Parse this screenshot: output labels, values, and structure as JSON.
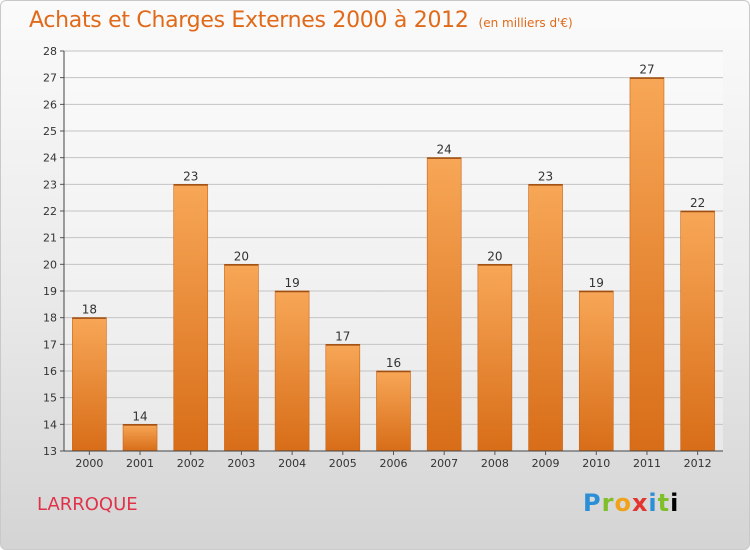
{
  "header": {
    "title": "Achats et Charges Externes 2000 à 2012",
    "subtitle": "(en milliers d'€)"
  },
  "footer": {
    "town": "LARROQUE",
    "brand": [
      "P",
      "r",
      "o",
      "x",
      "i",
      "t",
      "i"
    ]
  },
  "colors": {
    "title": "#e06a19",
    "town": "#e0334a",
    "bar_top": "#f7a757",
    "bar_bottom": "#d86d18"
  },
  "chart_data": {
    "type": "bar",
    "categories": [
      "2000",
      "2001",
      "2002",
      "2003",
      "2004",
      "2005",
      "2006",
      "2007",
      "2008",
      "2009",
      "2010",
      "2011",
      "2012"
    ],
    "values": [
      18,
      14,
      23,
      20,
      19,
      17,
      16,
      24,
      20,
      23,
      19,
      27,
      22
    ],
    "ylim": [
      13,
      28
    ],
    "yticks": [
      13,
      14,
      15,
      16,
      17,
      18,
      19,
      20,
      21,
      22,
      23,
      24,
      25,
      26,
      27,
      28
    ],
    "grid": "horizontal",
    "data_labels": true
  }
}
